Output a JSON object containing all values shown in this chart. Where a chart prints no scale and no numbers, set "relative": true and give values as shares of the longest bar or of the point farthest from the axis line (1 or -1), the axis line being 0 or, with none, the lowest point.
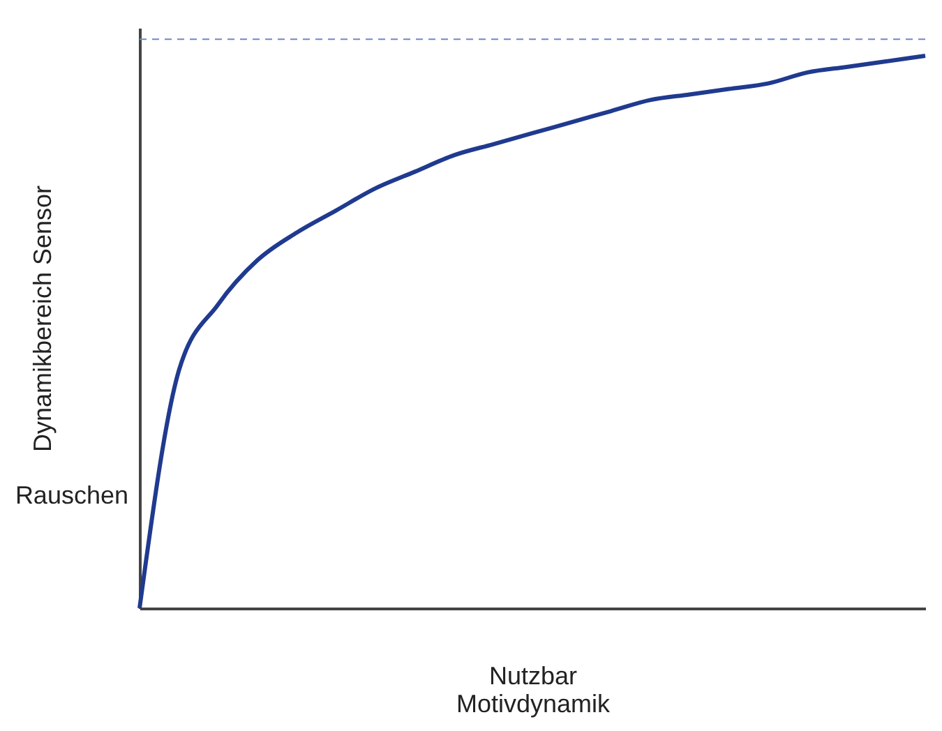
{
  "chart_data": {
    "type": "line",
    "relative": true,
    "ylabel": "Dynamikbereich Sensor",
    "xlabel": "Nutzbar\nMotivdynamik",
    "categories": [
      null,
      null,
      null,
      null,
      null,
      null,
      null,
      null,
      null,
      null,
      null,
      null,
      null,
      null,
      null,
      null,
      null,
      null,
      null,
      null,
      null
    ],
    "series": [
      {
        "color": "#1f3a8f",
        "values": [
          0,
          0.43,
          0.55,
          0.63,
          0.68,
          0.72,
          0.76,
          0.79,
          0.82,
          0.84,
          0.86,
          0.88,
          0.9,
          0.92,
          0.93,
          0.94,
          0.95,
          0.97,
          0.98,
          0.99,
          1
        ]
      }
    ],
    "ref_lines": [
      {
        "axis": "y",
        "value": 1.03,
        "color": "#6f86c6",
        "line_style": "dashed"
      }
    ],
    "annotations": [
      "Rauschen"
    ],
    "tick_labels": false,
    "grid": false,
    "marker": "none",
    "line_style": "solid"
  }
}
